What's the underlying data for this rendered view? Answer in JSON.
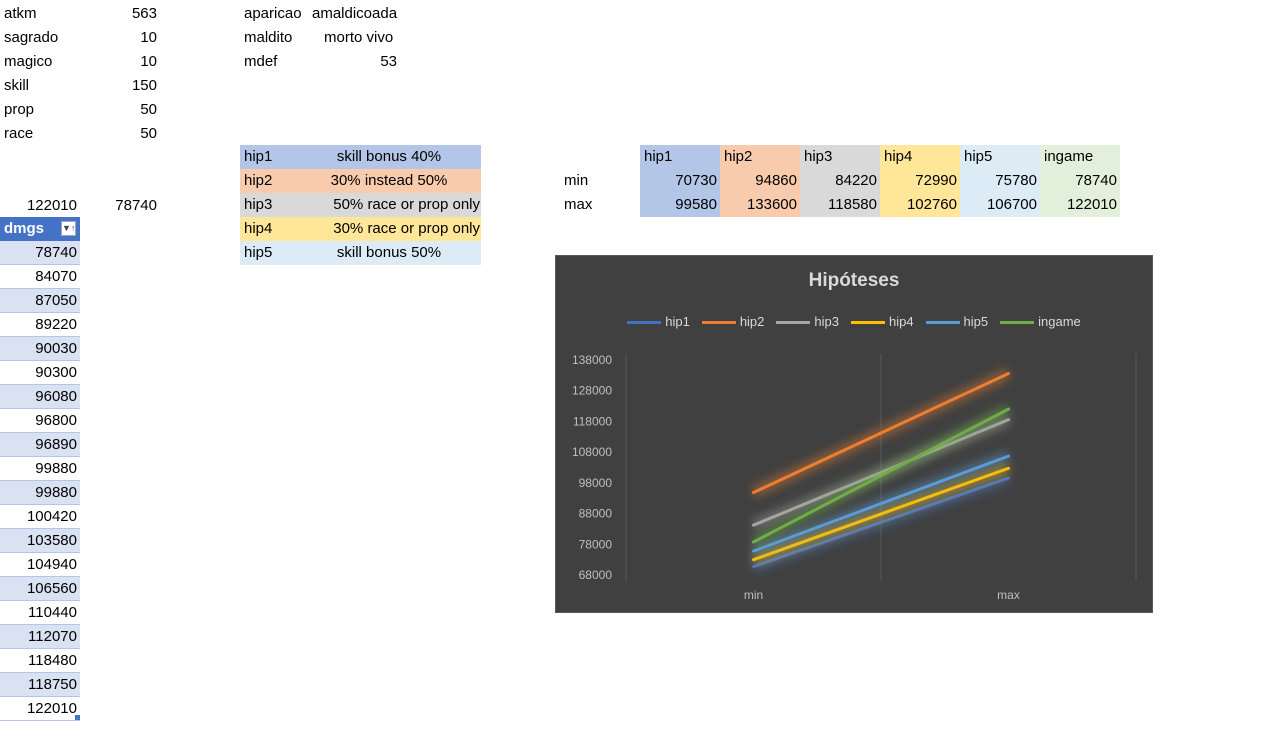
{
  "params": [
    {
      "label": "atkm",
      "value": "563"
    },
    {
      "label": "sagrado",
      "value": "10"
    },
    {
      "label": "magico",
      "value": "10"
    },
    {
      "label": "skill",
      "value": "150"
    },
    {
      "label": "prop",
      "value": "50"
    },
    {
      "label": "race",
      "value": "50"
    }
  ],
  "monster": {
    "name_label": "aparicao",
    "name_value": "amaldicoada",
    "type_label": "maldito",
    "type_value": "morto vivo",
    "mdef_label": "mdef",
    "mdef_value": "53"
  },
  "summary": {
    "max": "122010",
    "min": "78740"
  },
  "hypotheses": [
    {
      "name": "hip1",
      "desc": "skill bonus 40%"
    },
    {
      "name": "hip2",
      "desc": "30% instead 50%"
    },
    {
      "name": "hip3",
      "desc": "50% race or prop only"
    },
    {
      "name": "hip4",
      "desc": "30% race or prop only"
    },
    {
      "name": "hip5",
      "desc": "skill bonus 50%"
    }
  ],
  "dmgs": {
    "header": "dmgs",
    "values": [
      "78740",
      "84070",
      "87050",
      "89220",
      "90030",
      "90300",
      "96080",
      "96800",
      "96890",
      "99880",
      "99880",
      "100420",
      "103580",
      "104940",
      "106560",
      "110440",
      "112070",
      "118480",
      "118750",
      "122010"
    ]
  },
  "results": {
    "columns": [
      "hip1",
      "hip2",
      "hip3",
      "hip4",
      "hip5",
      "ingame"
    ],
    "rows": [
      {
        "label": "min",
        "values": [
          "70730",
          "94860",
          "84220",
          "72990",
          "75780",
          "78740"
        ]
      },
      {
        "label": "max",
        "values": [
          "99580",
          "133600",
          "118580",
          "102760",
          "106700",
          "122010"
        ]
      }
    ]
  },
  "colors": {
    "hip1": "#4472c4",
    "hip2": "#ed7d31",
    "hip3": "#a5a5a5",
    "hip4": "#ffc000",
    "hip5": "#5b9bd5",
    "ingame": "#70ad47"
  },
  "chart_data": {
    "type": "line",
    "title": "Hipóteses",
    "categories": [
      "min",
      "max"
    ],
    "series": [
      {
        "name": "hip1",
        "values": [
          70730,
          99580
        ]
      },
      {
        "name": "hip2",
        "values": [
          94860,
          133600
        ]
      },
      {
        "name": "hip3",
        "values": [
          84220,
          118580
        ]
      },
      {
        "name": "hip4",
        "values": [
          72990,
          102760
        ]
      },
      {
        "name": "hip5",
        "values": [
          75780,
          106700
        ]
      },
      {
        "name": "ingame",
        "values": [
          78740,
          122010
        ]
      }
    ],
    "yticks": [
      "68000",
      "78000",
      "88000",
      "98000",
      "108000",
      "118000",
      "128000",
      "138000"
    ],
    "ylim": [
      68000,
      138000
    ],
    "legend": "top",
    "grid": "vertical"
  }
}
